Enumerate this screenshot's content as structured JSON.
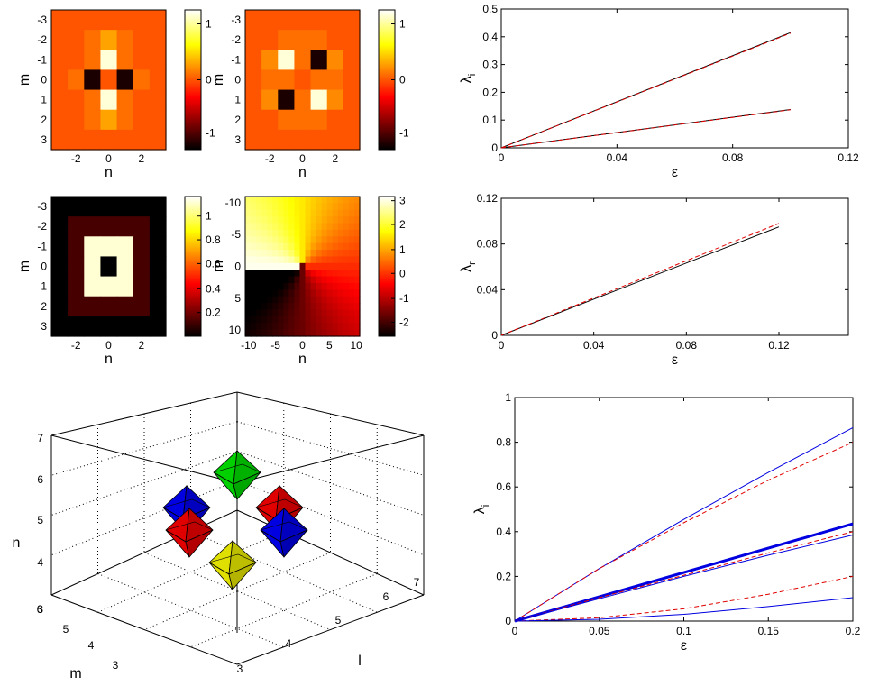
{
  "chart_data": [
    {
      "id": "heatmap1",
      "type": "heatmap",
      "xlabel": "n",
      "ylabel": "m",
      "xtick_labels": [
        "-2",
        "0",
        "2"
      ],
      "ytick_labels": [
        "-3",
        "-2",
        "-1",
        "0",
        "1",
        "2",
        "3"
      ],
      "colorbar_ticks": [
        "1",
        "0",
        "-1"
      ],
      "grid": [
        [
          0,
          0,
          0,
          0,
          0,
          0,
          0
        ],
        [
          0,
          0,
          0.1,
          0.3,
          0.1,
          0,
          0
        ],
        [
          0,
          0,
          0.1,
          1.2,
          0.1,
          0,
          0
        ],
        [
          0,
          0.1,
          -1.2,
          0,
          -1.2,
          0.1,
          0
        ],
        [
          0,
          0,
          0.1,
          1.2,
          0.1,
          0,
          0
        ],
        [
          0,
          0,
          0.1,
          0.3,
          0.1,
          0,
          0
        ],
        [
          0,
          0,
          0,
          0,
          0,
          0,
          0
        ]
      ],
      "crange": [
        -1.3,
        1.3
      ],
      "colormap": "hot"
    },
    {
      "id": "heatmap2",
      "type": "heatmap",
      "xlabel": "n",
      "ylabel": "m",
      "xtick_labels": [
        "-2",
        "0",
        "2"
      ],
      "ytick_labels": [
        "-3",
        "-2",
        "-1",
        "0",
        "1",
        "2",
        "3"
      ],
      "colorbar_ticks": [
        "1",
        "0",
        "-1"
      ],
      "grid": [
        [
          0,
          0,
          0,
          0,
          0,
          0,
          0
        ],
        [
          0,
          0,
          0.1,
          0.1,
          0.1,
          0,
          0
        ],
        [
          0,
          0.2,
          1.2,
          0.1,
          -1.2,
          0.2,
          0
        ],
        [
          0,
          0.1,
          0.1,
          0,
          0.1,
          0.1,
          0
        ],
        [
          0,
          0.2,
          -1.2,
          0.1,
          1.2,
          0.2,
          0
        ],
        [
          0,
          0,
          0.1,
          0.1,
          0.1,
          0,
          0
        ],
        [
          0,
          0,
          0,
          0,
          0,
          0,
          0
        ]
      ],
      "crange": [
        -1.3,
        1.3
      ],
      "colormap": "hot"
    },
    {
      "id": "heatmap3",
      "type": "heatmap",
      "xlabel": "n",
      "ylabel": "m",
      "xtick_labels": [
        "-2",
        "0",
        "2"
      ],
      "ytick_labels": [
        "-3",
        "-2",
        "-1",
        "0",
        "1",
        "2",
        "3"
      ],
      "colorbar_ticks": [
        "1",
        "0.8",
        "0.6",
        "0.4",
        "0.2"
      ],
      "grid": [
        [
          0,
          0,
          0,
          0,
          0,
          0,
          0
        ],
        [
          0,
          0.12,
          0.12,
          0.12,
          0.12,
          0.12,
          0
        ],
        [
          0,
          0.12,
          1.1,
          1.1,
          1.1,
          0.12,
          0
        ],
        [
          0,
          0.12,
          1.1,
          0,
          1.1,
          0.12,
          0
        ],
        [
          0,
          0.12,
          1.1,
          1.1,
          1.1,
          0.12,
          0
        ],
        [
          0,
          0.12,
          0.12,
          0.12,
          0.12,
          0.12,
          0
        ],
        [
          0,
          0,
          0,
          0,
          0,
          0,
          0
        ]
      ],
      "crange": [
        0,
        1.15
      ],
      "colormap": "hot"
    },
    {
      "id": "heatmap4",
      "type": "heatmap",
      "xlabel": "n",
      "ylabel": "m",
      "xtick_labels": [
        "-10",
        "-5",
        "0",
        "5",
        "10"
      ],
      "ytick_labels": [
        "-10",
        "-5",
        "0",
        "5",
        "10"
      ],
      "colorbar_ticks": [
        "3",
        "2",
        "1",
        "0",
        "-1",
        "-2"
      ],
      "crange": [
        -2.5,
        3.2
      ],
      "colormap": "hot",
      "description_function": "phase"
    },
    {
      "id": "line1",
      "type": "line",
      "xlabel": "ε",
      "ylabel": "λ_i",
      "xlim": [
        0,
        0.12
      ],
      "ylim": [
        0,
        0.5
      ],
      "xtick_labels": [
        "0",
        "0.04",
        "0.08",
        "0.12"
      ],
      "ytick_labels": [
        "0",
        "0.1",
        "0.2",
        "0.3",
        "0.4",
        "0.5"
      ],
      "series": [
        {
          "x": [
            0,
            0.1
          ],
          "y": [
            0,
            0.415
          ],
          "color": "#000000",
          "style": "solid"
        },
        {
          "x": [
            0,
            0.1
          ],
          "y": [
            0,
            0.413
          ],
          "color": "#e00000",
          "style": "dashed"
        },
        {
          "x": [
            0,
            0.1
          ],
          "y": [
            0,
            0.138
          ],
          "color": "#000000",
          "style": "solid"
        },
        {
          "x": [
            0,
            0.1
          ],
          "y": [
            0,
            0.137
          ],
          "color": "#e00000",
          "style": "dashed"
        }
      ]
    },
    {
      "id": "line2",
      "type": "line",
      "xlabel": "ε",
      "ylabel": "λ_r",
      "xlim": [
        0,
        0.15
      ],
      "ylim": [
        0,
        0.12
      ],
      "xtick_labels": [
        "0",
        "0.04",
        "0.08",
        "0.12"
      ],
      "ytick_labels": [
        "0",
        "0.04",
        "0.08",
        "0.12"
      ],
      "series": [
        {
          "x": [
            0,
            0.12
          ],
          "y": [
            0,
            0.095
          ],
          "color": "#000000",
          "style": "solid"
        },
        {
          "x": [
            0,
            0.12
          ],
          "y": [
            0,
            0.098
          ],
          "color": "#e00000",
          "style": "dashed"
        }
      ]
    },
    {
      "id": "line3",
      "type": "line",
      "xlabel": "ε",
      "ylabel": "λ_i",
      "xlim": [
        0,
        0.2
      ],
      "ylim": [
        0,
        1
      ],
      "xtick_labels": [
        "0",
        "0.05",
        "0.1",
        "0.15",
        "0.2"
      ],
      "ytick_labels": [
        "0",
        "0.2",
        "0.4",
        "0.6",
        "0.8",
        "1"
      ],
      "series": [
        {
          "x": [
            0,
            0.05,
            0.1,
            0.15,
            0.2
          ],
          "y": [
            0,
            0.235,
            0.455,
            0.665,
            0.865
          ],
          "color": "#0000e0",
          "style": "solid",
          "width": 1
        },
        {
          "x": [
            0,
            0.05,
            0.1,
            0.15,
            0.2
          ],
          "y": [
            0,
            0.235,
            0.44,
            0.63,
            0.8
          ],
          "color": "#e00000",
          "style": "dashed",
          "width": 1
        },
        {
          "x": [
            0,
            0.2
          ],
          "y": [
            0,
            0.435
          ],
          "color": "#0000e0",
          "style": "solid",
          "width": 3
        },
        {
          "x": [
            0,
            0.05,
            0.1,
            0.15,
            0.2
          ],
          "y": [
            0,
            0.105,
            0.205,
            0.305,
            0.4
          ],
          "color": "#e00000",
          "style": "dashed",
          "width": 1
        },
        {
          "x": [
            0,
            0.05,
            0.1,
            0.15,
            0.2
          ],
          "y": [
            0,
            0.1,
            0.2,
            0.295,
            0.385
          ],
          "color": "#0000e0",
          "style": "solid",
          "width": 1
        },
        {
          "x": [
            0,
            0.05,
            0.1,
            0.15,
            0.2
          ],
          "y": [
            0,
            0.015,
            0.055,
            0.12,
            0.2
          ],
          "color": "#e00000",
          "style": "dashed",
          "width": 1
        },
        {
          "x": [
            0,
            0.05,
            0.1,
            0.15,
            0.2
          ],
          "y": [
            0,
            0.008,
            0.03,
            0.065,
            0.105
          ],
          "color": "#0000e0",
          "style": "solid",
          "width": 1
        }
      ]
    },
    {
      "id": "cube3d",
      "type": "scatter",
      "xlabel": "l",
      "ylabel": "m",
      "zlabel": "n",
      "xtick_labels": [
        "3",
        "4",
        "5",
        "6",
        "7"
      ],
      "ytick_labels": [
        "3",
        "4",
        "5",
        "6"
      ],
      "ztick_labels": [
        "3",
        "4",
        "5",
        "6",
        "7"
      ],
      "points": [
        {
          "color": "#00d000",
          "position": "top"
        },
        {
          "color": "#0000e0",
          "position": "upper-left"
        },
        {
          "color": "#e00000",
          "position": "upper-right"
        },
        {
          "color": "#e00000",
          "position": "lower-left"
        },
        {
          "color": "#0000e0",
          "position": "lower-right"
        },
        {
          "color": "#e0e000",
          "position": "bottom"
        }
      ]
    }
  ]
}
